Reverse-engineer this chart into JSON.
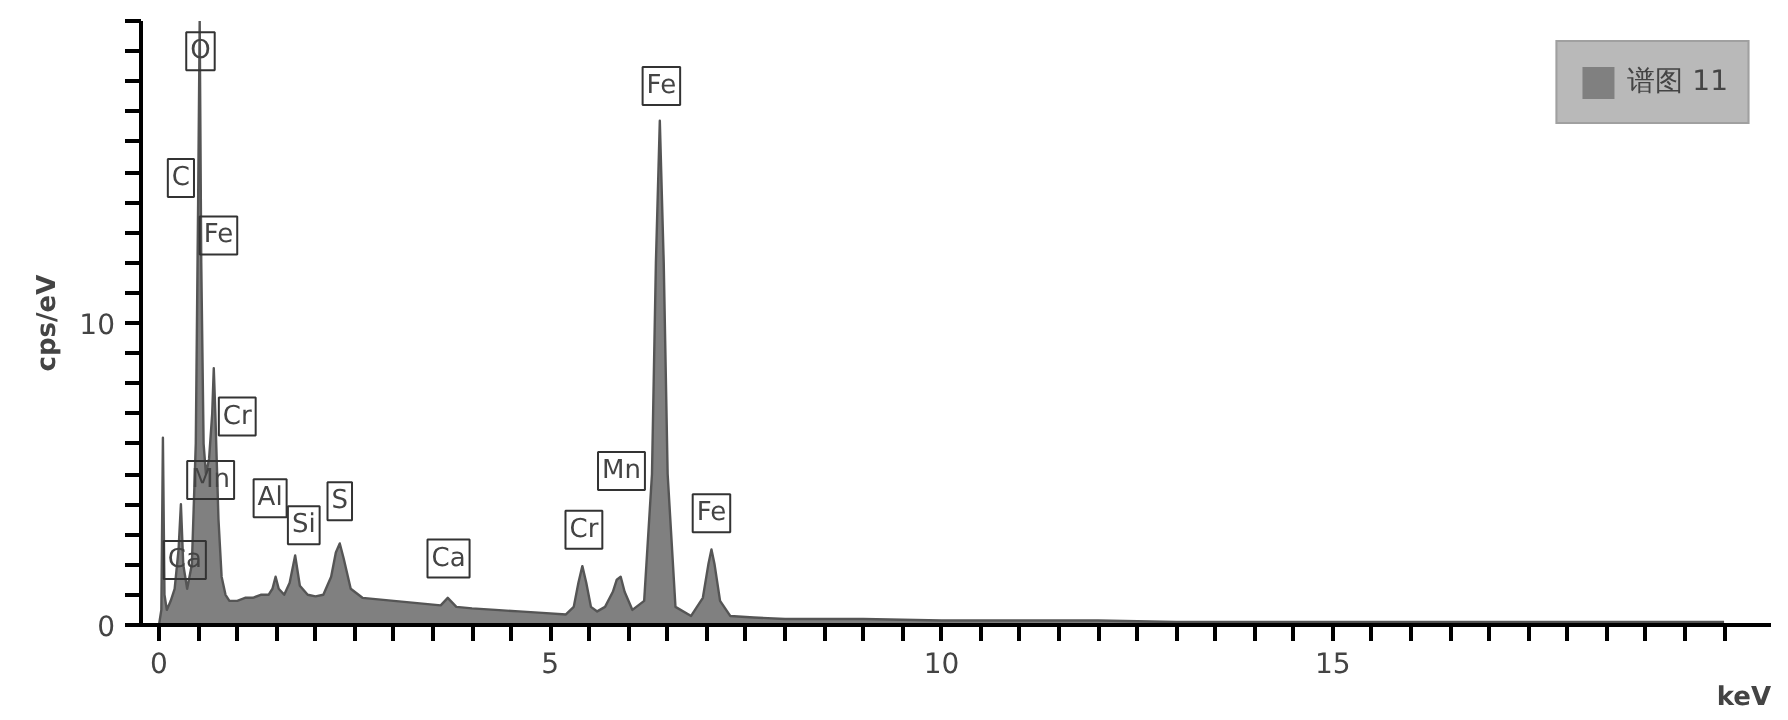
{
  "chart_data": {
    "type": "area",
    "xlabel": "keV",
    "ylabel": "cps/eV",
    "x": [
      0.0,
      0.03,
      0.05,
      0.07,
      0.1,
      0.15,
      0.2,
      0.25,
      0.28,
      0.31,
      0.36,
      0.42,
      0.47,
      0.5,
      0.52,
      0.54,
      0.57,
      0.6,
      0.64,
      0.68,
      0.7,
      0.72,
      0.76,
      0.8,
      0.85,
      0.9,
      1.0,
      1.1,
      1.2,
      1.3,
      1.4,
      1.45,
      1.49,
      1.53,
      1.6,
      1.67,
      1.74,
      1.8,
      1.9,
      2.0,
      2.1,
      2.2,
      2.26,
      2.31,
      2.36,
      2.45,
      2.6,
      2.8,
      3.0,
      3.2,
      3.4,
      3.6,
      3.69,
      3.8,
      4.0,
      4.3,
      4.6,
      4.9,
      5.2,
      5.3,
      5.36,
      5.41,
      5.46,
      5.52,
      5.6,
      5.7,
      5.8,
      5.85,
      5.9,
      5.95,
      6.05,
      6.2,
      6.3,
      6.35,
      6.4,
      6.45,
      6.5,
      6.6,
      6.8,
      6.95,
      7.02,
      7.06,
      7.1,
      7.17,
      7.3,
      7.6,
      8.0,
      9.0,
      10.0,
      11.0,
      12.0,
      13.0,
      14.0,
      15.0,
      16.0,
      17.0,
      18.0,
      19.0,
      20.0
    ],
    "series": [
      {
        "name": "谱图 11",
        "color": "#808080",
        "values": [
          0,
          0.5,
          6.2,
          1.0,
          0.5,
          0.8,
          1.2,
          2.5,
          4.0,
          2.0,
          1.2,
          2.0,
          6.0,
          14.0,
          20.0,
          12.0,
          6.0,
          5.0,
          5.5,
          7.0,
          8.5,
          7.0,
          3.5,
          1.6,
          1.0,
          0.8,
          0.8,
          0.9,
          0.9,
          1.0,
          1.0,
          1.2,
          1.6,
          1.2,
          1.0,
          1.4,
          2.3,
          1.3,
          1.0,
          0.95,
          1.0,
          1.6,
          2.4,
          2.7,
          2.2,
          1.2,
          0.9,
          0.85,
          0.8,
          0.75,
          0.7,
          0.65,
          0.9,
          0.6,
          0.55,
          0.5,
          0.45,
          0.4,
          0.35,
          0.6,
          1.4,
          1.95,
          1.4,
          0.6,
          0.45,
          0.6,
          1.1,
          1.5,
          1.6,
          1.1,
          0.5,
          0.8,
          5.0,
          12.0,
          16.7,
          12.0,
          5.0,
          0.6,
          0.3,
          0.9,
          2.0,
          2.5,
          2.0,
          0.8,
          0.3,
          0.25,
          0.2,
          0.2,
          0.15,
          0.15,
          0.15,
          0.1,
          0.1,
          0.1,
          0.1,
          0.1,
          0.1,
          0.1,
          0.1
        ]
      }
    ],
    "xlim": [
      -0.23,
      20.6
    ],
    "ylim": [
      0,
      20
    ],
    "xticks": [
      0,
      {
        "value": 0.5,
        "label": null
      },
      {
        "value": 1,
        "label": null
      },
      {
        "value": 1.5,
        "label": null
      },
      {
        "value": 2,
        "label": null
      },
      {
        "value": 2.5,
        "label": null
      },
      {
        "value": 3,
        "label": null
      },
      {
        "value": 3.5,
        "label": null
      },
      {
        "value": 4,
        "label": null
      },
      {
        "value": 4.5,
        "label": null
      },
      5,
      {
        "value": 5.5,
        "label": null
      },
      {
        "value": 6,
        "label": null
      },
      {
        "value": 6.5,
        "label": null
      },
      {
        "value": 7,
        "label": null
      },
      {
        "value": 7.5,
        "label": null
      },
      {
        "value": 8,
        "label": null
      },
      {
        "value": 8.5,
        "label": null
      },
      {
        "value": 9,
        "label": null
      },
      {
        "value": 9.5,
        "label": null
      },
      10,
      {
        "value": 10.5,
        "label": null
      },
      {
        "value": 11,
        "label": null
      },
      {
        "value": 11.5,
        "label": null
      },
      {
        "value": 12,
        "label": null
      },
      {
        "value": 12.5,
        "label": null
      },
      {
        "value": 13,
        "label": null
      },
      {
        "value": 13.5,
        "label": null
      },
      {
        "value": 14,
        "label": null
      },
      {
        "value": 14.5,
        "label": null
      },
      15,
      {
        "value": 15.5,
        "label": null
      },
      {
        "value": 16,
        "label": null
      },
      {
        "value": 16.5,
        "label": null
      },
      {
        "value": 17,
        "label": null
      },
      {
        "value": 17.5,
        "label": null
      },
      {
        "value": 18,
        "label": null
      },
      {
        "value": 18.5,
        "label": null
      },
      {
        "value": 19,
        "label": null
      },
      {
        "value": 19.5,
        "label": null
      },
      {
        "value": 20,
        "label": null
      }
    ],
    "yticks": [
      0,
      {
        "value": 1,
        "label": null
      },
      {
        "value": 2,
        "label": null
      },
      {
        "value": 3,
        "label": null
      },
      {
        "value": 4,
        "label": null
      },
      {
        "value": 5,
        "label": null
      },
      {
        "value": 6,
        "label": null
      },
      {
        "value": 7,
        "label": null
      },
      {
        "value": 8,
        "label": null
      },
      {
        "value": 9,
        "label": null
      },
      10,
      {
        "value": 11,
        "label": null
      },
      {
        "value": 12,
        "label": null
      },
      {
        "value": 13,
        "label": null
      },
      {
        "value": 14,
        "label": null
      },
      {
        "value": 15,
        "label": null
      },
      {
        "value": 16,
        "label": null
      },
      {
        "value": 17,
        "label": null
      },
      {
        "value": 18,
        "label": null
      },
      {
        "value": 19,
        "label": null
      },
      {
        "value": 20,
        "label": null
      }
    ],
    "grid": false,
    "legend": "top right",
    "annotations": [
      {
        "text": "O",
        "x": 0.53,
        "y": 19.0
      },
      {
        "text": "C",
        "x": 0.28,
        "y": 14.8
      },
      {
        "text": "Fe",
        "x": 0.76,
        "y": 12.9
      },
      {
        "text": "Cr",
        "x": 1.0,
        "y": 6.9
      },
      {
        "text": "Mn",
        "x": 0.66,
        "y": 4.8
      },
      {
        "text": "Ca",
        "x": 0.33,
        "y": 2.15
      },
      {
        "text": "Al",
        "x": 1.42,
        "y": 4.2
      },
      {
        "text": "Si",
        "x": 1.85,
        "y": 3.3
      },
      {
        "text": "S",
        "x": 2.31,
        "y": 4.1
      },
      {
        "text": "Ca",
        "x": 3.7,
        "y": 2.2
      },
      {
        "text": "Cr",
        "x": 5.43,
        "y": 3.15
      },
      {
        "text": "Mn",
        "x": 5.91,
        "y": 5.1
      },
      {
        "text": "Fe",
        "x": 6.42,
        "y": 17.85
      },
      {
        "text": "Fe",
        "x": 7.06,
        "y": 3.7
      }
    ]
  }
}
